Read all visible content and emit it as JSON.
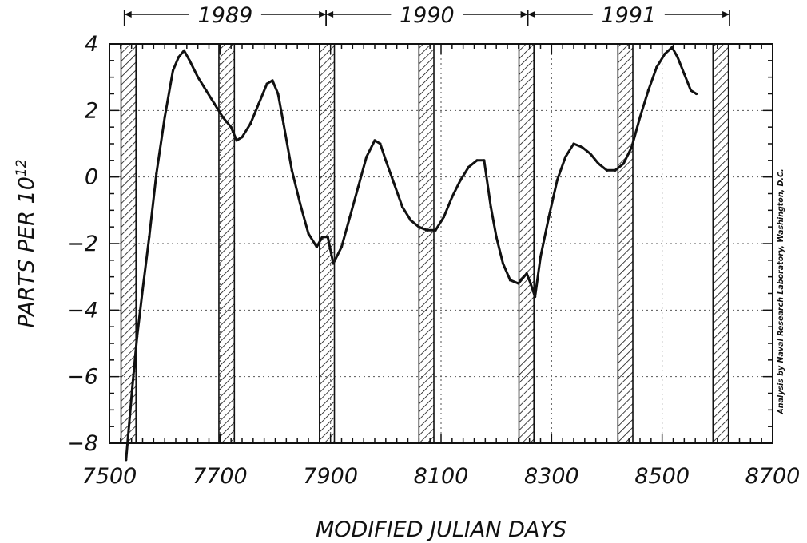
{
  "chart_data": {
    "type": "line",
    "title": "",
    "xlabel": "MODIFIED JULIAN DAYS",
    "ylabel_base": "PARTS PER 10",
    "ylabel_exp": "12",
    "xlim": [
      7500,
      8700
    ],
    "ylim": [
      -8,
      4
    ],
    "x_ticks": [
      7500,
      7700,
      7900,
      8100,
      8300,
      8500,
      8700
    ],
    "x_tick_labels": [
      "7500",
      "7700",
      "7900",
      "8100",
      "8300",
      "8500",
      "8700"
    ],
    "y_ticks": [
      4,
      2,
      0,
      -2,
      -4,
      -6,
      -8
    ],
    "y_tick_labels": [
      "4",
      "2",
      "0",
      "−2",
      "−4",
      "−6",
      "−8"
    ],
    "grid": true,
    "annotation": "Analysis by Naval Research Laboratory, Washington, D.C.",
    "years": [
      {
        "label": "1989",
        "start": 7527,
        "end": 7892
      },
      {
        "label": "1990",
        "start": 7892,
        "end": 8257
      },
      {
        "label": "1991",
        "start": 8257,
        "end": 8622
      }
    ],
    "shaded_bands": [
      [
        7521,
        7548
      ],
      [
        7698,
        7726
      ],
      [
        7880,
        7907
      ],
      [
        8060,
        8087
      ],
      [
        8241,
        8268
      ],
      [
        8420,
        8447
      ],
      [
        8592,
        8620
      ]
    ],
    "series": [
      {
        "x": [
          7530,
          7542,
          7550,
          7560,
          7572,
          7585,
          7600,
          7615,
          7625,
          7635,
          7645,
          7660,
          7675,
          7690,
          7705,
          7720,
          7730,
          7740,
          7755,
          7770,
          7785,
          7795,
          7805,
          7815,
          7830,
          7845,
          7860,
          7875,
          7885,
          7895,
          7905,
          7920,
          7935,
          7950,
          7965,
          7980,
          7990,
          8000,
          8015,
          8030,
          8045,
          8060,
          8075,
          8090,
          8105,
          8120,
          8135,
          8150,
          8165,
          8178,
          8190,
          8200,
          8212,
          8225,
          8240,
          8255,
          8262,
          8270,
          8280,
          8295,
          8310,
          8325,
          8340,
          8355,
          8370,
          8385,
          8400,
          8415,
          8430,
          8445,
          8460,
          8475,
          8490,
          8505,
          8518,
          8528,
          8540,
          8552,
          8562
        ],
        "y": [
          -8.5,
          -6.2,
          -4.8,
          -3.4,
          -1.8,
          0.1,
          1.8,
          3.2,
          3.6,
          3.8,
          3.5,
          3.0,
          2.6,
          2.2,
          1.8,
          1.5,
          1.1,
          1.2,
          1.6,
          2.2,
          2.8,
          2.9,
          2.5,
          1.6,
          0.2,
          -0.8,
          -1.7,
          -2.1,
          -1.8,
          -1.8,
          -2.6,
          -2.1,
          -1.2,
          -0.3,
          0.6,
          1.1,
          1.0,
          0.5,
          -0.2,
          -0.9,
          -1.3,
          -1.5,
          -1.6,
          -1.6,
          -1.2,
          -0.6,
          -0.1,
          0.3,
          0.5,
          0.5,
          -0.9,
          -1.8,
          -2.6,
          -3.1,
          -3.2,
          -2.9,
          -3.2,
          -3.6,
          -2.4,
          -1.2,
          -0.1,
          0.6,
          1.0,
          0.9,
          0.7,
          0.4,
          0.2,
          0.2,
          0.4,
          0.9,
          1.8,
          2.6,
          3.3,
          3.7,
          3.9,
          3.6,
          3.1,
          2.6,
          2.5
        ]
      }
    ]
  }
}
